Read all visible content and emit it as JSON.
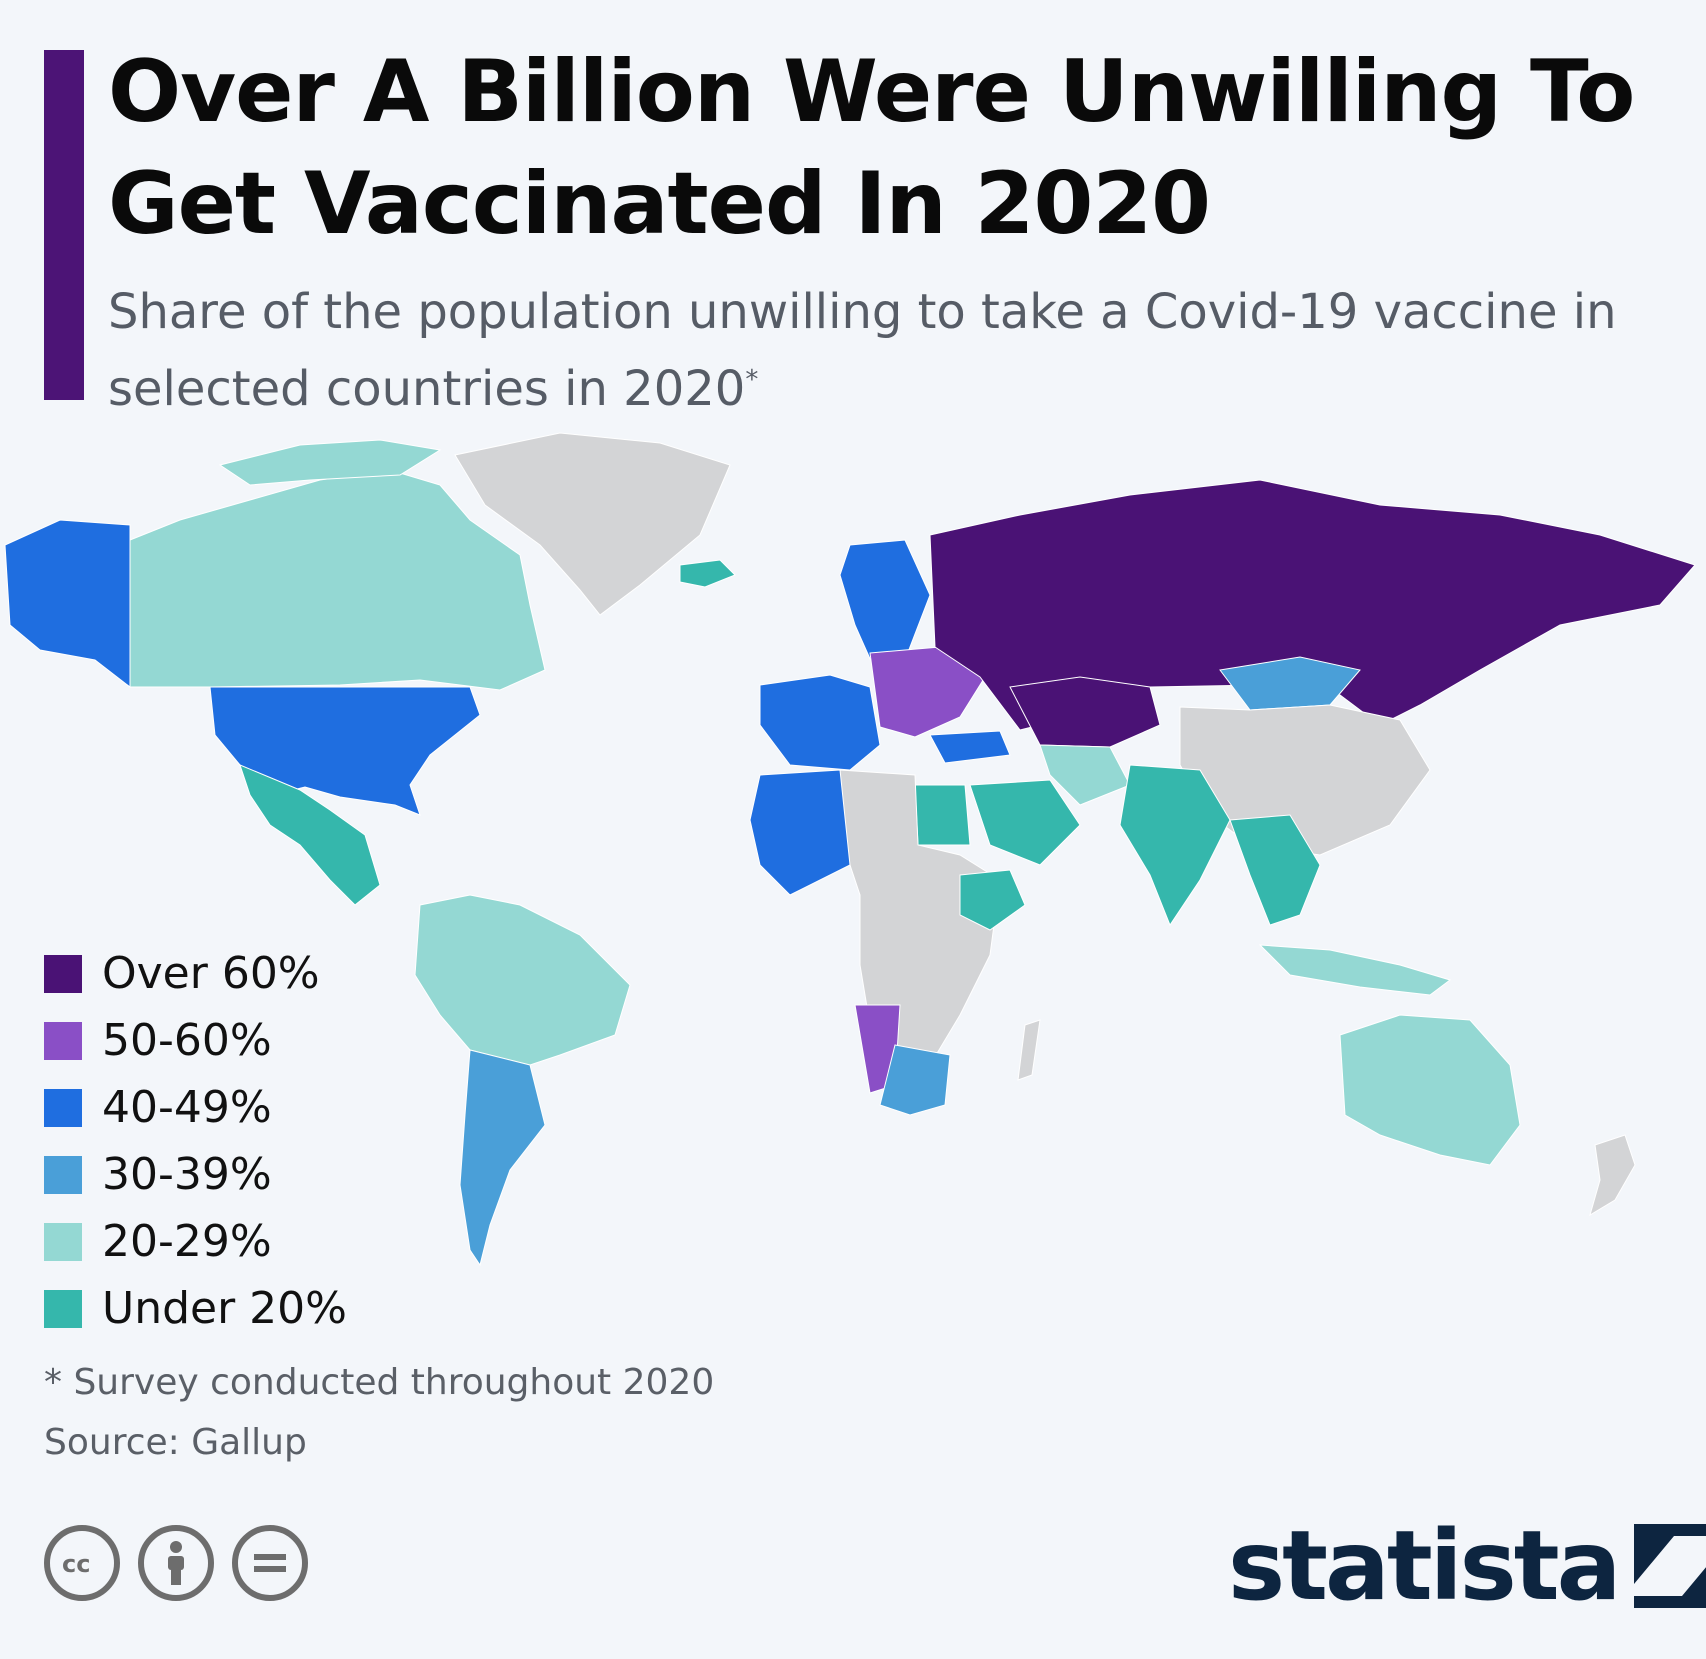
{
  "title": "Over A Billion Were Unwilling To Get Vaccinated In 2020",
  "subtitle": "Share of the population unwilling to take a Covid-19 vaccine in selected countries in 2020",
  "subtitle_marker": "*",
  "colors": {
    "accent": "#4c1476",
    "over60": "#4a1275",
    "50to60": "#8a4fc6",
    "40to49": "#1f6ee0",
    "30to39": "#4a9fd8",
    "20to29": "#94d8d3",
    "under20": "#35b7ac",
    "no_data": "#d3d4d6",
    "brand": "#0d2540"
  },
  "legend": {
    "items": [
      {
        "label": "Over 60%",
        "color": "#4a1275"
      },
      {
        "label": "50-60%",
        "color": "#8a4fc6"
      },
      {
        "label": "40-49%",
        "color": "#1f6ee0"
      },
      {
        "label": "30-39%",
        "color": "#4a9fd8"
      },
      {
        "label": "20-29%",
        "color": "#94d8d3"
      },
      {
        "label": "Under 20%",
        "color": "#35b7ac"
      }
    ]
  },
  "map_regions": [
    {
      "region": "Alaska",
      "category": "40-49%"
    },
    {
      "region": "Canada",
      "category": "20-29%"
    },
    {
      "region": "United States",
      "category": "40-49%"
    },
    {
      "region": "Mexico",
      "category": "Under 20%"
    },
    {
      "region": "Greenland",
      "category": "no data"
    },
    {
      "region": "Iceland",
      "category": "Under 20%"
    },
    {
      "region": "South America North",
      "category": "20-29%"
    },
    {
      "region": "South America South",
      "category": "30-39%"
    },
    {
      "region": "Western Europe",
      "category": "40-49%"
    },
    {
      "region": "Eastern Europe",
      "category": "50-60%"
    },
    {
      "region": "Russia",
      "category": "Over 60%"
    },
    {
      "region": "Kazakhstan & Central Asia",
      "category": "Over 60%"
    },
    {
      "region": "Mongolia",
      "category": "30-39%"
    },
    {
      "region": "China",
      "category": "no data"
    },
    {
      "region": "India",
      "category": "Under 20%"
    },
    {
      "region": "Southeast Asia",
      "category": "Under 20%"
    },
    {
      "region": "Indonesia",
      "category": "20-29%"
    },
    {
      "region": "Australia",
      "category": "20-29%"
    },
    {
      "region": "New Zealand",
      "category": "no data"
    },
    {
      "region": "Egypt",
      "category": "Under 20%"
    },
    {
      "region": "North Africa",
      "category": "40-49%"
    },
    {
      "region": "Central Africa",
      "category": "no data"
    },
    {
      "region": "Ethiopia",
      "category": "Under 20%"
    },
    {
      "region": "Namibia",
      "category": "50-60%"
    },
    {
      "region": "South Africa",
      "category": "30-39%"
    },
    {
      "region": "Madagascar",
      "category": "no data"
    }
  ],
  "footnote": "* Survey conducted throughout 2020",
  "source": "Source: Gallup",
  "license_icons": [
    "creative-commons-icon",
    "attribution-icon",
    "no-derivatives-icon"
  ],
  "brand": {
    "name": "statista"
  }
}
